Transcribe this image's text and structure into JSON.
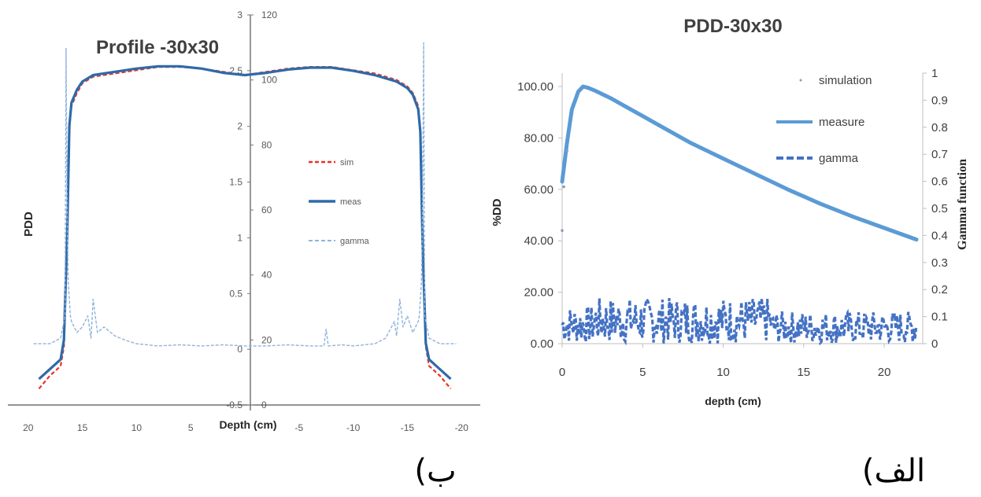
{
  "chart_data": [
    {
      "id": "profile",
      "type": "line",
      "title": "Profile -30x30",
      "xlabel": "Depth (cm)",
      "ylabel": "PDD",
      "x_ticks": [
        20,
        15,
        10,
        5,
        0,
        -5,
        -10,
        -15,
        -20
      ],
      "x_tick_labels": [
        "20",
        "15",
        "10",
        "5",
        "",
        "-5",
        "-10",
        "-15",
        "-20"
      ],
      "xlim": [
        21,
        -21
      ],
      "y_axis_inner_ticks": [
        "3",
        "2.5",
        "2",
        "1.5",
        "1",
        "0.5",
        "0",
        "-0.5"
      ],
      "y_axis_outer_ticks": [
        "120",
        "100",
        "80",
        "60",
        "40",
        "20",
        "0"
      ],
      "ylim_left": [
        0,
        120
      ],
      "ylim_gamma": [
        -0.5,
        3
      ],
      "grid": false,
      "legend_position": "right-middle",
      "series": [
        {
          "name": "sim",
          "color": "#e8322a",
          "style": "dashed",
          "x": [
            19,
            18,
            17,
            16.7,
            16.4,
            16.2,
            16,
            15.5,
            15,
            14,
            12,
            10,
            8,
            6,
            4,
            2,
            0,
            -2,
            -4,
            -6,
            -8,
            -10,
            -12,
            -14,
            -15,
            -15.5,
            -16,
            -16.2,
            -16.4,
            -16.7,
            -17,
            -18,
            -19
          ],
          "y": [
            5,
            9,
            12,
            18,
            50,
            85,
            92,
            96,
            99,
            101,
            102,
            103,
            104,
            104,
            103.5,
            102.5,
            101.5,
            102.5,
            103.5,
            104,
            104,
            103,
            102,
            100,
            98,
            96,
            92,
            85,
            50,
            18,
            12,
            9,
            5
          ]
        },
        {
          "name": "meas",
          "color": "#2e6aa8",
          "style": "solid",
          "x": [
            19,
            18,
            17,
            16.7,
            16.4,
            16.2,
            16,
            15.5,
            15,
            14,
            12,
            10,
            8,
            6,
            4,
            2,
            0,
            -2,
            -4,
            -6,
            -8,
            -10,
            -12,
            -14,
            -15,
            -15.5,
            -16,
            -16.2,
            -16.4,
            -16.7,
            -17,
            -18,
            -19
          ],
          "y": [
            8,
            11,
            14,
            20,
            52,
            86,
            93,
            97,
            99.5,
            101.5,
            102.5,
            103.5,
            104.2,
            104.2,
            103.5,
            102.2,
            101.5,
            102.2,
            103.2,
            103.8,
            103.8,
            102.8,
            101.5,
            99.5,
            97.5,
            95.5,
            91,
            84,
            50,
            19,
            14,
            11,
            8
          ]
        },
        {
          "name": "gamma",
          "color": "#8fb3dd",
          "style": "dashed",
          "axis": "gamma",
          "x": [
            19.5,
            18,
            17,
            16.6,
            16.5,
            16.4,
            16.3,
            16.1,
            16,
            15.5,
            15,
            14.5,
            14.2,
            14,
            13.6,
            13,
            12,
            11,
            10,
            8,
            6,
            4,
            2,
            0,
            -2,
            -4,
            -6,
            -7.3,
            -7.5,
            -7.7,
            -9,
            -10,
            -12,
            -13,
            -13.8,
            -14,
            -14.3,
            -14.6,
            -15,
            -15.5,
            -16,
            -16.1,
            -16.3,
            -16.4,
            -16.5,
            -16.6,
            -17,
            -18,
            -19.5
          ],
          "y": [
            0.05,
            0.05,
            0.1,
            0.3,
            2.7,
            1.2,
            0.6,
            0.3,
            0.25,
            0.15,
            0.2,
            0.3,
            0.1,
            0.45,
            0.15,
            0.2,
            0.12,
            0.08,
            0.05,
            0.03,
            0.04,
            0.03,
            0.04,
            0.03,
            0.03,
            0.04,
            0.03,
            0.03,
            0.18,
            0.03,
            0.04,
            0.03,
            0.05,
            0.1,
            0.25,
            0.12,
            0.45,
            0.2,
            0.3,
            0.15,
            0.25,
            0.3,
            0.6,
            1.2,
            2.75,
            0.3,
            0.1,
            0.05,
            0.05
          ]
        }
      ]
    },
    {
      "id": "pdd",
      "type": "line",
      "title": "PDD-30x30",
      "xlabel": "depth (cm)",
      "ylabel": "%DD",
      "y2label": "Gamma function",
      "x_ticks": [
        0,
        5,
        10,
        15,
        20
      ],
      "xlim": [
        0,
        22
      ],
      "y_ticks": [
        "0.00",
        "20.00",
        "40.00",
        "60.00",
        "80.00",
        "100.00"
      ],
      "ylim": [
        0,
        100
      ],
      "y2_ticks": [
        "0",
        "0.1",
        "0.2",
        "0.3",
        "0.4",
        "0.5",
        "0.6",
        "0.7",
        "0.8",
        "0.9",
        "1"
      ],
      "y2lim": [
        0,
        1
      ],
      "grid": false,
      "legend_position": "top-right",
      "series": [
        {
          "name": "simulation",
          "color": "#8a9bb5",
          "style": "points",
          "x": [
            0.0,
            0.1,
            0.3
          ],
          "y": [
            44,
            61,
            75
          ]
        },
        {
          "name": "measure",
          "color": "#5b9bd5",
          "style": "solid",
          "x": [
            0,
            0.3,
            0.6,
            1.0,
            1.3,
            1.6,
            2,
            3,
            4,
            5,
            6,
            8,
            10,
            12,
            14,
            16,
            18,
            20,
            22
          ],
          "y": [
            63,
            78,
            91,
            98,
            100,
            99.5,
            98.5,
            95.5,
            92,
            88.5,
            85,
            78,
            72,
            66,
            60,
            54.5,
            49.5,
            45,
            40.5
          ]
        },
        {
          "name": "gamma",
          "color": "#4472c4",
          "style": "dashed",
          "axis": "y2",
          "x_range": [
            0,
            22
          ],
          "y_range": [
            0,
            0.19
          ]
        }
      ]
    }
  ],
  "legends": {
    "profile": [
      "sim",
      "meas",
      "gamma"
    ],
    "pdd": [
      "simulation",
      "measure",
      "gamma"
    ]
  },
  "panel_labels": {
    "right": "(الف",
    "left": "(ب"
  }
}
